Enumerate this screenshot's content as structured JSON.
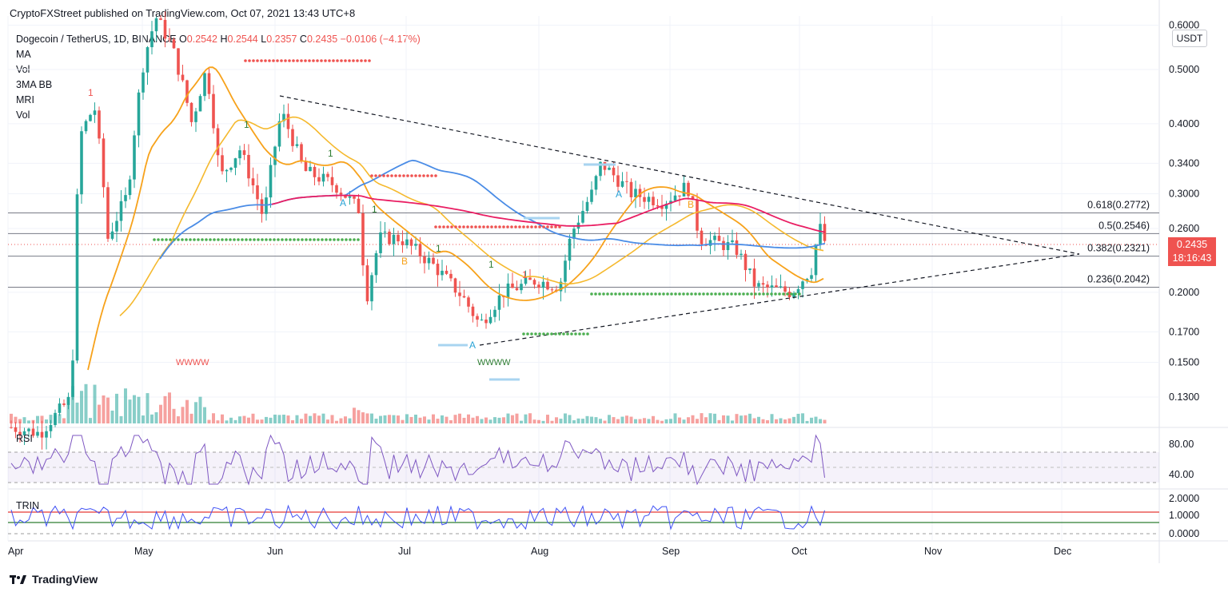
{
  "header": {
    "published": "CryptoFXStreet published on TradingView.com, Oct 07, 2021 13:43 UTC+8"
  },
  "symbol": {
    "title": "Dogecoin / TetherUS, 1D, BINANCE",
    "open_label": "O",
    "open": "0.2542",
    "high_label": "H",
    "high": "0.2544",
    "low_label": "L",
    "low": "0.2357",
    "close_label": "C",
    "close": "0.2435",
    "change": "−0.0106 (−4.17%)"
  },
  "indicators": [
    "MA",
    "Vol",
    "3MA BB",
    "MRI",
    "Vol"
  ],
  "currency_button": "USDT",
  "price_axis": [
    "0.6000",
    "0.5000",
    "0.4000",
    "0.3400",
    "0.3000",
    "0.2600",
    "0.2000",
    "0.1700",
    "0.1500",
    "0.1300"
  ],
  "price_badge": {
    "price": "0.2435",
    "countdown": "18:16:43",
    "color": "#ef5350"
  },
  "fib_levels": [
    {
      "label": "0.618(0.2772)",
      "value": 0.2772
    },
    {
      "label": "0.5(0.2546)",
      "value": 0.2546
    },
    {
      "label": "0.382(0.2321)",
      "value": 0.2321
    },
    {
      "label": "0.236(0.2042)",
      "value": 0.2042
    }
  ],
  "rsi": {
    "label": "RSI",
    "axis": [
      "80.00",
      "40.00"
    ]
  },
  "trin": {
    "label": "TRIN",
    "axis": [
      "2.0000",
      "1.0000",
      "0.0000"
    ]
  },
  "months": [
    "Apr",
    "May",
    "Jun",
    "Jul",
    "Aug",
    "Sep",
    "Oct",
    "Nov",
    "Dec"
  ],
  "markers": {
    "td_one": "1",
    "td_a": "A",
    "td_b": "B",
    "wave": "WWWW"
  },
  "colors": {
    "up": "#26a69a",
    "down": "#ef5350",
    "ma_red": "#e91e63",
    "ma_blue": "#4a8ce6",
    "ma_orange": "#f7a21b",
    "ma_yellow": "#f5b92e",
    "rsi_line": "#7e57c2",
    "trin_line": "#3f51f5"
  },
  "footer": {
    "brand": "TradingView"
  }
}
